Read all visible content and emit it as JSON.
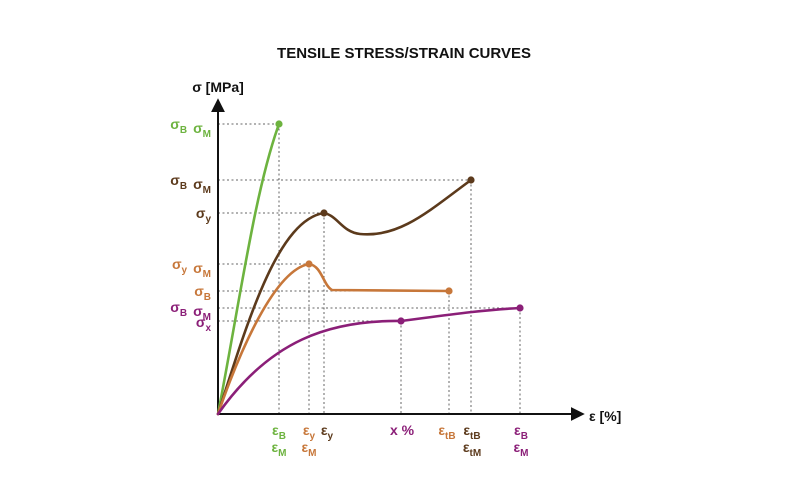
{
  "title": "TENSILE STRESS/STRAIN CURVES",
  "y_axis_label": "σ [MPa]",
  "x_axis_label": "ε [%]",
  "colors": {
    "green": "#6db33f",
    "brown": "#5c3a1c",
    "orange": "#c7773a",
    "purple": "#8b1f78",
    "axis": "#111111",
    "guide": "#666666"
  },
  "y_labels": [
    {
      "id": "green-bm",
      "color": "green",
      "parts": [
        [
          "σ",
          "B"
        ],
        [
          "σ",
          "M"
        ]
      ]
    },
    {
      "id": "brown-bm",
      "color": "brown",
      "parts": [
        [
          "σ",
          "B"
        ],
        [
          "σ",
          "M"
        ]
      ]
    },
    {
      "id": "brown-y",
      "color": "brown",
      "parts": [
        [
          "σ",
          "y"
        ]
      ]
    },
    {
      "id": "orange-ym",
      "color": "orange",
      "parts": [
        [
          "σ",
          "y"
        ],
        [
          "σ",
          "M"
        ]
      ]
    },
    {
      "id": "orange-b",
      "color": "orange",
      "parts": [
        [
          "σ",
          "B"
        ]
      ]
    },
    {
      "id": "purple-bm",
      "color": "purple",
      "parts": [
        [
          "σ",
          "B"
        ],
        [
          "σ",
          "M"
        ]
      ]
    },
    {
      "id": "purple-x",
      "color": "purple",
      "parts": [
        [
          "σ",
          "x"
        ]
      ]
    }
  ],
  "x_labels": [
    {
      "id": "green-b",
      "color": "green",
      "base": "ε",
      "sub": "B"
    },
    {
      "id": "green-m",
      "color": "green",
      "base": "ε",
      "sub": "M"
    },
    {
      "id": "orange-y",
      "color": "orange",
      "base": "ε",
      "sub": "y"
    },
    {
      "id": "orange-m",
      "color": "orange",
      "base": "ε",
      "sub": "M"
    },
    {
      "id": "brown-y",
      "color": "brown",
      "base": "ε",
      "sub": "y"
    },
    {
      "id": "purple-x",
      "color": "purple",
      "base": "x %",
      "sub": ""
    },
    {
      "id": "orange-tb",
      "color": "orange",
      "base": "ε",
      "sub": "tB"
    },
    {
      "id": "brown-tb",
      "color": "brown",
      "base": "ε",
      "sub": "tB"
    },
    {
      "id": "brown-tm",
      "color": "brown",
      "base": "ε",
      "sub": "tM"
    },
    {
      "id": "purple-b",
      "color": "purple",
      "base": "ε",
      "sub": "B"
    },
    {
      "id": "purple-m",
      "color": "purple",
      "base": "ε",
      "sub": "M"
    }
  ],
  "curves": [
    {
      "id": "green",
      "color": "green"
    },
    {
      "id": "brown",
      "color": "brown"
    },
    {
      "id": "orange",
      "color": "orange"
    },
    {
      "id": "purple",
      "color": "purple"
    }
  ]
}
